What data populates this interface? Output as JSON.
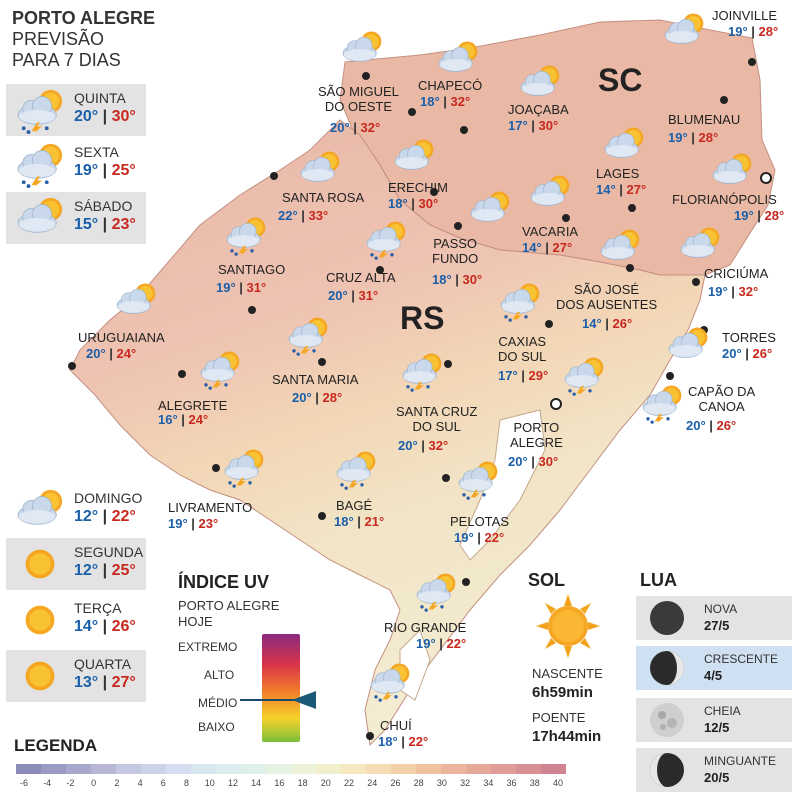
{
  "header": {
    "title_line1": "PORTO ALEGRE",
    "title_line2": "PREVISÃO",
    "title_line3": "PARA 7 DIAS"
  },
  "forecast": [
    {
      "day": "QUINTA",
      "min": "20°",
      "max": "30°",
      "icon": "cloud-sun-storm-icon"
    },
    {
      "day": "SEXTA",
      "min": "19°",
      "max": "25°",
      "icon": "cloud-sun-storm-icon"
    },
    {
      "day": "SÁBADO",
      "min": "15°",
      "max": "23°",
      "icon": "cloud-sun-icon"
    },
    {
      "day": "DOMINGO",
      "min": "12°",
      "max": "22°",
      "icon": "cloud-sun-icon"
    },
    {
      "day": "SEGUNDA",
      "min": "12°",
      "max": "25°",
      "icon": "sun-icon"
    },
    {
      "day": "TERÇA",
      "min": "14°",
      "max": "26°",
      "icon": "sun-icon"
    },
    {
      "day": "QUARTA",
      "min": "13°",
      "max": "27°",
      "icon": "sun-icon"
    }
  ],
  "states": {
    "sc": "SC",
    "rs": "RS"
  },
  "cities": [
    {
      "id": "joinville",
      "name": "JOINVILLE",
      "min": "19°",
      "max": "28°"
    },
    {
      "id": "chapeco",
      "name": "CHAPECÓ",
      "min": "18°",
      "max": "32°"
    },
    {
      "id": "sao-miguel",
      "name": "SÃO MIGUEL\nDO OESTE",
      "min": "20°",
      "max": "32°"
    },
    {
      "id": "joacaba",
      "name": "JOAÇABA",
      "min": "17°",
      "max": "30°"
    },
    {
      "id": "blumenau",
      "name": "BLUMENAU",
      "min": "19°",
      "max": "28°"
    },
    {
      "id": "lages",
      "name": "LAGES",
      "min": "14°",
      "max": "27°"
    },
    {
      "id": "florianopolis",
      "name": "FLORIANÓPOLIS",
      "min": "19°",
      "max": "28°"
    },
    {
      "id": "santa-rosa",
      "name": "SANTA ROSA",
      "min": "22°",
      "max": "33°"
    },
    {
      "id": "erechim",
      "name": "ERECHIM",
      "min": "18°",
      "max": "30°"
    },
    {
      "id": "vacaria",
      "name": "VACARIA",
      "min": "14°",
      "max": "27°"
    },
    {
      "id": "passo-fundo",
      "name": "PASSO\nFUNDO",
      "min": "18°",
      "max": "30°"
    },
    {
      "id": "santiago",
      "name": "SANTIAGO",
      "min": "19°",
      "max": "31°"
    },
    {
      "id": "cruz-alta",
      "name": "CRUZ ALTA",
      "min": "20°",
      "max": "31°"
    },
    {
      "id": "sao-jose",
      "name": "SÃO JOSÉ\nDOS AUSENTES",
      "min": "14°",
      "max": "26°"
    },
    {
      "id": "criciuma",
      "name": "CRICIÚMA",
      "min": "19°",
      "max": "32°"
    },
    {
      "id": "uruguaiana",
      "name": "URUGUAIANA",
      "min": "20°",
      "max": "24°"
    },
    {
      "id": "caxias",
      "name": "CAXIAS\nDO SUL",
      "min": "17°",
      "max": "29°"
    },
    {
      "id": "torres",
      "name": "TORRES",
      "min": "20°",
      "max": "26°"
    },
    {
      "id": "santa-maria",
      "name": "SANTA MARIA",
      "min": "20°",
      "max": "28°"
    },
    {
      "id": "alegrete",
      "name": "ALEGRETE",
      "min": "16°",
      "max": "24°"
    },
    {
      "id": "capao",
      "name": "CAPÃO DA\nCANOA",
      "min": "20°",
      "max": "26°"
    },
    {
      "id": "santa-cruz",
      "name": "SANTA CRUZ\nDO SUL",
      "min": "20°",
      "max": "32°"
    },
    {
      "id": "porto-alegre",
      "name": "PORTO\nALEGRE",
      "min": "20°",
      "max": "30°"
    },
    {
      "id": "livramento",
      "name": "LIVRAMENTO",
      "min": "19°",
      "max": "23°"
    },
    {
      "id": "bage",
      "name": "BAGÉ",
      "min": "18°",
      "max": "21°"
    },
    {
      "id": "pelotas",
      "name": "PELOTAS",
      "min": "19°",
      "max": "22°"
    },
    {
      "id": "rio-grande",
      "name": "RIO GRANDE",
      "min": "19°",
      "max": "22°"
    },
    {
      "id": "chui",
      "name": "CHUÍ",
      "min": "18°",
      "max": "22°"
    }
  ],
  "uv": {
    "title": "ÍNDICE UV",
    "subtitle1": "PORTO ALEGRE",
    "subtitle2": "HOJE",
    "levels": [
      "EXTREMO",
      "ALTO",
      "MÉDIO",
      "BAIXO"
    ],
    "current": "MÉDIO"
  },
  "sun": {
    "title": "SOL",
    "sunrise_label": "NASCENTE",
    "sunrise": "6h59min",
    "sunset_label": "POENTE",
    "sunset": "17h44min"
  },
  "moon": {
    "title": "LUA",
    "phases": [
      {
        "name": "NOVA",
        "date": "27/5",
        "active": false
      },
      {
        "name": "CRESCENTE",
        "date": "4/5",
        "active": true
      },
      {
        "name": "CHEIA",
        "date": "12/5",
        "active": false
      },
      {
        "name": "MINGUANTE",
        "date": "20/5",
        "active": false
      }
    ]
  },
  "legend": {
    "title": "LEGENDA",
    "ticks": [
      "-6",
      "-4",
      "-2",
      "0",
      "2",
      "4",
      "6",
      "8",
      "10",
      "12",
      "14",
      "16",
      "18",
      "20",
      "22",
      "24",
      "26",
      "28",
      "30",
      "32",
      "34",
      "36",
      "38",
      "40"
    ],
    "colors": [
      "#8c8cb8",
      "#9a9ac4",
      "#a8a8cc",
      "#b8b8d6",
      "#c4c8e0",
      "#cdd4e8",
      "#d4def0",
      "#d8e6f0",
      "#dcebee",
      "#dff0ea",
      "#e6f2e2",
      "#edf3d8",
      "#f2f0cc",
      "#f5e8c0",
      "#f6dcb4",
      "#f4d0a8",
      "#f0c2a0",
      "#ecb49c",
      "#e6a898",
      "#e09c96",
      "#d89094",
      "#d08492"
    ]
  }
}
